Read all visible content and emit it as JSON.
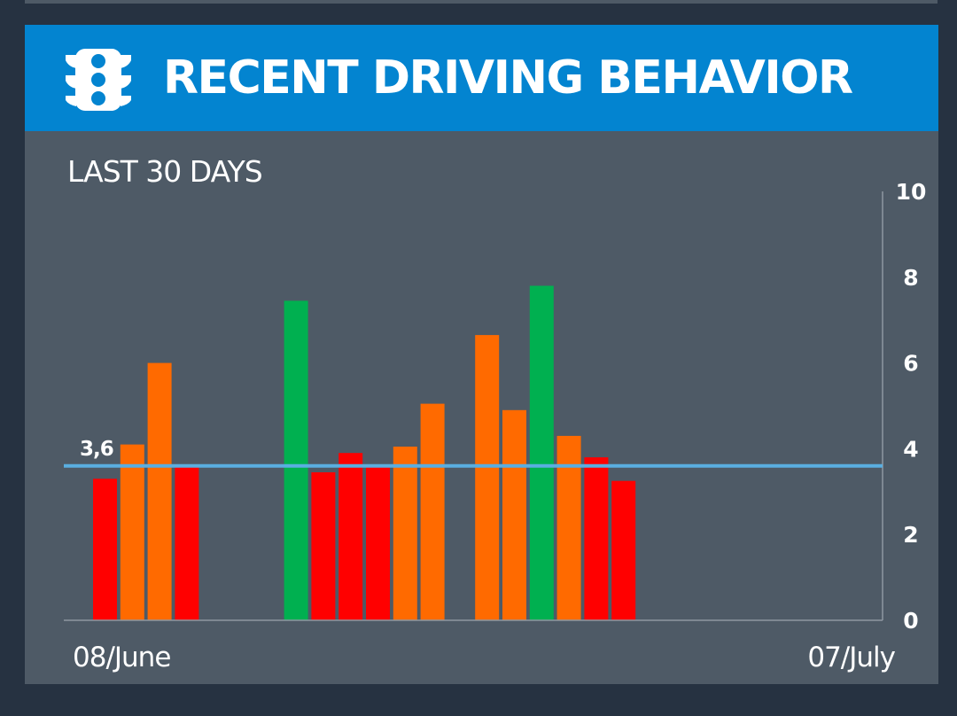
{
  "header": {
    "title": "RECENT DRIVING BEHAVIOR",
    "icon": "traffic-light-icon",
    "color": "#0384d0"
  },
  "subtitle": "LAST 30 DAYS",
  "chart_data": {
    "type": "bar",
    "title": "RECENT DRIVING BEHAVIOR",
    "subtitle": "LAST 30 DAYS",
    "xlabel": "",
    "ylabel": "",
    "ylim": [
      0,
      10
    ],
    "yticks": [
      "0",
      "2",
      "4",
      "6",
      "8",
      "10"
    ],
    "y_axis_side": "right",
    "x_start_label": "08/June",
    "x_end_label": "07/July",
    "average": {
      "value": 3.6,
      "label": "3,6",
      "color": "#5aaee0"
    },
    "colors": {
      "red": "#ff0000",
      "orange": "#ff6a00",
      "green": "#00b050"
    },
    "bars": [
      {
        "day": 1,
        "value": 3.3,
        "color": "red"
      },
      {
        "day": 2,
        "value": 4.1,
        "color": "orange"
      },
      {
        "day": 3,
        "value": 6.0,
        "color": "orange"
      },
      {
        "day": 4,
        "value": 3.6,
        "color": "red"
      },
      {
        "day": 8,
        "value": 7.45,
        "color": "green"
      },
      {
        "day": 9,
        "value": 3.45,
        "color": "red"
      },
      {
        "day": 10,
        "value": 3.9,
        "color": "red"
      },
      {
        "day": 11,
        "value": 3.6,
        "color": "red"
      },
      {
        "day": 12,
        "value": 4.05,
        "color": "orange"
      },
      {
        "day": 13,
        "value": 5.05,
        "color": "orange"
      },
      {
        "day": 15,
        "value": 6.65,
        "color": "orange"
      },
      {
        "day": 16,
        "value": 4.9,
        "color": "orange"
      },
      {
        "day": 17,
        "value": 7.8,
        "color": "green"
      },
      {
        "day": 18,
        "value": 4.3,
        "color": "orange"
      },
      {
        "day": 19,
        "value": 3.8,
        "color": "red"
      },
      {
        "day": 20,
        "value": 3.25,
        "color": "red"
      }
    ]
  }
}
